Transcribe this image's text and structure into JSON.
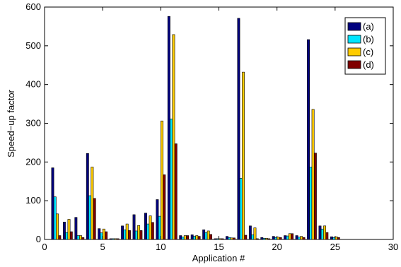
{
  "chart_data": {
    "type": "bar",
    "title": "",
    "xlabel": "Application #",
    "ylabel": "Speed−up factor",
    "xlim": [
      0,
      30
    ],
    "ylim": [
      0,
      600
    ],
    "xticks": [
      "0",
      "5",
      "10",
      "15",
      "20",
      "25",
      "30"
    ],
    "yticks": [
      "0",
      "100",
      "200",
      "300",
      "400",
      "500",
      "600"
    ],
    "grid": false,
    "legend_position": "top-right",
    "categories": [
      1,
      2,
      3,
      4,
      5,
      6,
      7,
      8,
      9,
      10,
      11,
      12,
      13,
      14,
      15,
      16,
      17,
      18,
      19,
      20,
      21,
      22,
      23,
      24,
      25
    ],
    "series": [
      {
        "name": "(a)",
        "color": "#00007f",
        "values": [
          185,
          45,
          57,
          222,
          28,
          2,
          35,
          64,
          68,
          103,
          576,
          10,
          12,
          25,
          2,
          8,
          571,
          35,
          5,
          8,
          10,
          10,
          516,
          35,
          7
        ]
      },
      {
        "name": "(b)",
        "color": "#00e5ff",
        "values": [
          110,
          18,
          10,
          113,
          17,
          2,
          25,
          22,
          40,
          60,
          311,
          6,
          8,
          18,
          2,
          5,
          158,
          12,
          3,
          5,
          9,
          6,
          187,
          27,
          5
        ]
      },
      {
        "name": "(c)",
        "color": "#ffcc00",
        "values": [
          66,
          52,
          10,
          187,
          27,
          2,
          40,
          36,
          61,
          306,
          529,
          10,
          10,
          22,
          2,
          4,
          432,
          30,
          3,
          6,
          15,
          8,
          336,
          35,
          7
        ]
      },
      {
        "name": "(d)",
        "color": "#800000",
        "values": [
          10,
          20,
          5,
          106,
          20,
          2,
          23,
          23,
          44,
          167,
          247,
          10,
          8,
          13,
          2,
          4,
          11,
          2,
          2,
          5,
          15,
          5,
          223,
          18,
          5
        ]
      }
    ]
  }
}
